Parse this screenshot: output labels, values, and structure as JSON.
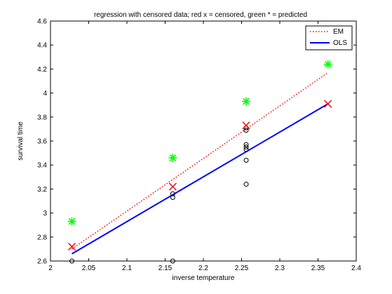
{
  "chart_data": {
    "type": "scatter",
    "title": "regression with censored data; red x = censored, green * = predicted",
    "xlabel": "inverse temperature",
    "ylabel": "survival time",
    "xlim": [
      2.0,
      2.4
    ],
    "ylim": [
      2.6,
      4.6
    ],
    "xticks": [
      "2",
      "2.05",
      "2.1",
      "2.15",
      "2.2",
      "2.25",
      "2.3",
      "2.35",
      "2.4"
    ],
    "yticks": [
      "2.6",
      "2.8",
      "3",
      "3.2",
      "3.4",
      "3.6",
      "3.8",
      "4",
      "4.2",
      "4.4",
      "4.6"
    ],
    "grid": false,
    "legend_position": "top-right",
    "series": [
      {
        "name": "EM",
        "kind": "line",
        "style": "dotted",
        "color": "#ff0000",
        "x": [
          2.028,
          2.363
        ],
        "y": [
          2.7,
          4.17
        ]
      },
      {
        "name": "OLS",
        "kind": "line",
        "style": "solid",
        "color": "#0000ff",
        "x": [
          2.028,
          2.363
        ],
        "y": [
          2.66,
          3.91
        ]
      },
      {
        "kind": "marker",
        "marker": "circle",
        "color": "#000000",
        "x": [
          2.028,
          2.16,
          2.16,
          2.16,
          2.256,
          2.256,
          2.256,
          2.256,
          2.256,
          2.256,
          2.256
        ],
        "y": [
          2.6,
          2.6,
          3.13,
          3.16,
          3.24,
          3.44,
          3.53,
          3.55,
          3.57,
          3.69,
          3.71
        ]
      },
      {
        "kind": "marker",
        "marker": "x",
        "color": "#ff0000",
        "x": [
          2.028,
          2.16,
          2.256,
          2.363
        ],
        "y": [
          2.72,
          3.22,
          3.73,
          3.91
        ]
      },
      {
        "kind": "marker",
        "marker": "star",
        "color": "#00ff00",
        "x": [
          2.028,
          2.16,
          2.256,
          2.363
        ],
        "y": [
          2.93,
          3.46,
          3.93,
          4.24
        ]
      }
    ]
  }
}
